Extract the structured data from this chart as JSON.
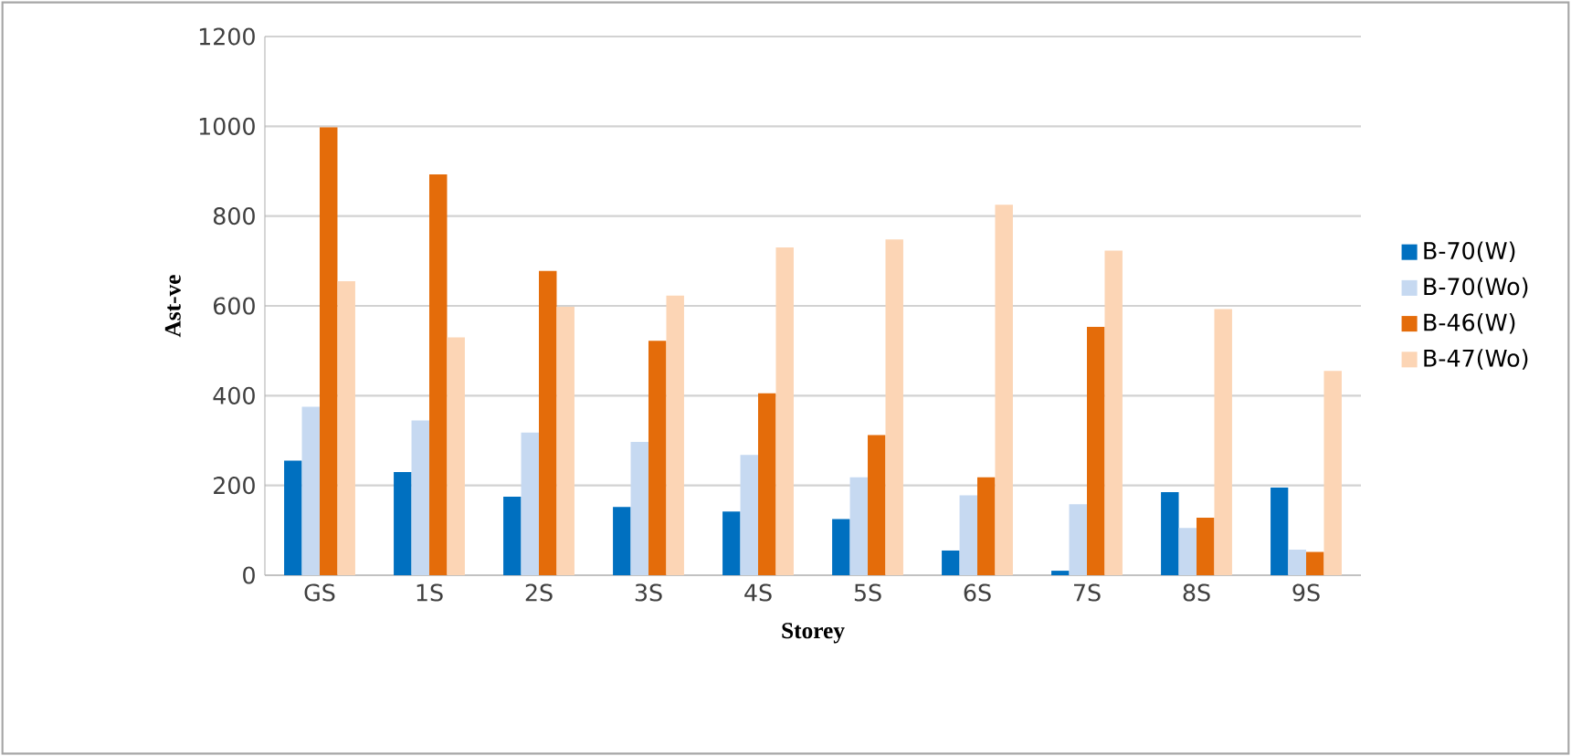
{
  "chart_data": {
    "type": "bar",
    "xlabel": "Storey",
    "ylabel": "Ast-ve",
    "categories": [
      "GS",
      "1S",
      "2S",
      "3S",
      "4S",
      "5S",
      "6S",
      "7S",
      "8S",
      "9S"
    ],
    "series": [
      {
        "name": "B-70(W)",
        "color": "#0070c0",
        "values": [
          255,
          230,
          175,
          152,
          142,
          125,
          55,
          10,
          185,
          195
        ]
      },
      {
        "name": "B-70(Wo)",
        "color": "#c6d9f1",
        "values": [
          375,
          345,
          318,
          297,
          268,
          218,
          178,
          158,
          105,
          57
        ]
      },
      {
        "name": "B-46(W)",
        "color": "#e46c0a",
        "values": [
          998,
          893,
          678,
          522,
          405,
          312,
          218,
          553,
          128,
          52
        ]
      },
      {
        "name": "B-47(Wo)",
        "color": "#fcd5b5",
        "values": [
          655,
          530,
          598,
          623,
          730,
          748,
          825,
          723,
          593,
          455
        ]
      }
    ],
    "ylim": [
      0,
      1200
    ],
    "yticks": [
      0,
      200,
      400,
      600,
      800,
      1000,
      1200
    ],
    "grid": "y",
    "legend": "right"
  }
}
